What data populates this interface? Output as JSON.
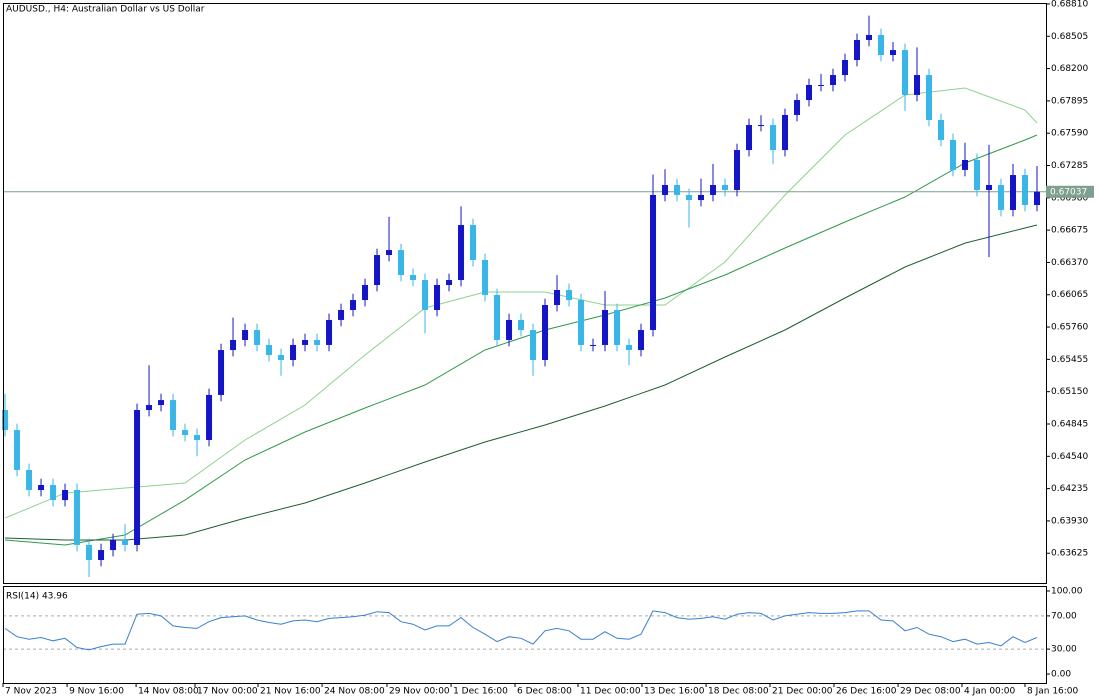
{
  "chart_data": [
    {
      "type": "candlestick",
      "title": "AUDUSD., H4:  Australian Dollar vs US Dollar",
      "xlim": [
        -0.17,
        86.75
      ],
      "xticks": [
        {
          "value": -0.17,
          "label": "7 Nov 2023"
        },
        {
          "value": 5.17,
          "label": "9 Nov 16:00"
        },
        {
          "value": 10.92,
          "label": "14 Nov 08:00"
        },
        {
          "value": 15.83,
          "label": "17 Nov 00:00"
        },
        {
          "value": 21.08,
          "label": "21 Nov 16:00"
        },
        {
          "value": 26.42,
          "label": "24 Nov 08:00"
        },
        {
          "value": 31.83,
          "label": "29 Nov 00:00"
        },
        {
          "value": 37.17,
          "label": "1 Dec 16:00"
        },
        {
          "value": 42.5,
          "label": "6 Dec 08:00"
        },
        {
          "value": 47.75,
          "label": "11 Dec 00:00"
        },
        {
          "value": 53.08,
          "label": "13 Dec 16:00"
        },
        {
          "value": 58.42,
          "label": "18 Dec 08:00"
        },
        {
          "value": 63.75,
          "label": "21 Dec 00:00"
        },
        {
          "value": 69.08,
          "label": "26 Dec 16:00"
        },
        {
          "value": 74.42,
          "label": "29 Dec 08:00"
        },
        {
          "value": 79.75,
          "label": "4 Jan 00:00"
        },
        {
          "value": 85,
          "label": "8 Jan 16:00"
        }
      ],
      "ylim": [
        0.63344,
        0.68819
      ],
      "yticks": [
        {
          "value": 0.6881,
          "label": "0.68810"
        },
        0.68505,
        {
          "value": 0.682,
          "label": "0.68200"
        },
        0.67895,
        {
          "value": 0.6759,
          "label": "0.67590"
        },
        0.67285,
        {
          "value": 0.6698,
          "label": "0.66980"
        },
        0.66675,
        {
          "value": 0.6637,
          "label": "0.66370"
        },
        0.66065,
        {
          "value": 0.6576,
          "label": "0.65760"
        },
        0.65455,
        {
          "value": 0.6515,
          "label": "0.65150"
        },
        0.64845,
        {
          "value": 0.6454,
          "label": "0.64540"
        },
        0.64235,
        {
          "value": 0.6393,
          "label": "0.63930"
        },
        0.63625
      ],
      "open": [
        0.64977,
        0.64788,
        0.64411,
        0.64222,
        0.64269,
        0.64127,
        0.64222,
        0.63703,
        0.63561,
        0.63655,
        0.6375,
        0.63703,
        0.64977,
        0.65024,
        0.65071,
        0.64788,
        0.64741,
        0.64694,
        0.65119,
        0.65543,
        0.65638,
        0.65732,
        0.65591,
        0.65496,
        0.65449,
        0.65591,
        0.65638,
        0.65591,
        0.65827,
        0.65921,
        0.66015,
        0.66157,
        0.6644,
        0.66487,
        0.66251,
        0.66204,
        0.65921,
        0.66157,
        0.66204,
        0.66723,
        0.66393,
        0.66063,
        0.65638,
        0.65827,
        0.65732,
        0.65449,
        0.65968,
        0.6611,
        0.66015,
        0.65591,
        0.65591,
        0.65921,
        0.65591,
        0.65543,
        0.65732,
        0.67007,
        0.67101,
        0.67007,
        0.66959,
        0.67007,
        0.67101,
        0.67054,
        0.67431,
        0.67667,
        0.67667,
        0.67431,
        0.67762,
        0.67903,
        0.68045,
        0.68045,
        0.68139,
        0.68281,
        0.6847,
        0.68517,
        0.68328,
        0.68375,
        0.67951,
        0.68139,
        0.67715,
        0.67526,
        0.67243,
        0.67337,
        0.67054,
        0.67101,
        0.66865,
        0.67195,
        0.66912
      ],
      "high": [
        0.6513,
        0.64848,
        0.64471,
        0.64329,
        0.64329,
        0.64282,
        0.64282,
        0.63763,
        0.63715,
        0.6381,
        0.639,
        0.65037,
        0.654,
        0.65131,
        0.65131,
        0.64848,
        0.64801,
        0.65179,
        0.65603,
        0.6585,
        0.65792,
        0.65792,
        0.65651,
        0.65556,
        0.65651,
        0.65698,
        0.65698,
        0.65887,
        0.65981,
        0.66075,
        0.66217,
        0.665,
        0.668,
        0.66547,
        0.66311,
        0.66264,
        0.66217,
        0.66264,
        0.669,
        0.66783,
        0.66453,
        0.66123,
        0.65887,
        0.65887,
        0.65792,
        0.66028,
        0.6625,
        0.6617,
        0.66075,
        0.65651,
        0.661,
        0.65981,
        0.65651,
        0.65792,
        0.672,
        0.6725,
        0.67161,
        0.67067,
        0.67161,
        0.673,
        0.67161,
        0.67491,
        0.67727,
        0.6776,
        0.67727,
        0.67822,
        0.67963,
        0.68105,
        0.6815,
        0.68199,
        0.68341,
        0.6853,
        0.687,
        0.68577,
        0.6845,
        0.68435,
        0.684,
        0.68199,
        0.67775,
        0.67586,
        0.675,
        0.67397,
        0.6748,
        0.67161,
        0.673,
        0.67255,
        0.6728
      ],
      "low": [
        0.64728,
        0.64351,
        0.64162,
        0.64162,
        0.64067,
        0.64067,
        0.63643,
        0.634,
        0.63501,
        0.63595,
        0.63643,
        0.63643,
        0.64917,
        0.64964,
        0.64728,
        0.64681,
        0.6454,
        0.64634,
        0.65059,
        0.65483,
        0.65578,
        0.65531,
        0.65436,
        0.653,
        0.65389,
        0.65531,
        0.65531,
        0.65531,
        0.65767,
        0.65861,
        0.65955,
        0.66097,
        0.6638,
        0.66191,
        0.66144,
        0.657,
        0.65861,
        0.66097,
        0.66144,
        0.66333,
        0.66003,
        0.65578,
        0.65578,
        0.65672,
        0.653,
        0.65389,
        0.65908,
        0.65955,
        0.65531,
        0.65531,
        0.65531,
        0.65531,
        0.654,
        0.65483,
        0.65672,
        0.66947,
        0.66947,
        0.667,
        0.66899,
        0.66947,
        0.66994,
        0.66994,
        0.67371,
        0.67607,
        0.673,
        0.67371,
        0.67702,
        0.67843,
        0.67985,
        0.67985,
        0.68079,
        0.68221,
        0.6841,
        0.68268,
        0.68268,
        0.678,
        0.67891,
        0.67655,
        0.67466,
        0.67183,
        0.67183,
        0.66994,
        0.6642,
        0.66805,
        0.66805,
        0.66852,
        0.66852
      ],
      "close": [
        0.64788,
        0.64411,
        0.64222,
        0.64269,
        0.64127,
        0.64222,
        0.63703,
        0.63561,
        0.63655,
        0.6375,
        0.63703,
        0.64977,
        0.65024,
        0.65071,
        0.64788,
        0.64741,
        0.64694,
        0.65119,
        0.65543,
        0.65638,
        0.65732,
        0.65591,
        0.65496,
        0.65449,
        0.65591,
        0.65638,
        0.65591,
        0.65827,
        0.65921,
        0.66015,
        0.66157,
        0.6644,
        0.66487,
        0.66251,
        0.66204,
        0.65921,
        0.66157,
        0.66204,
        0.66723,
        0.66393,
        0.66063,
        0.65638,
        0.65827,
        0.65732,
        0.65449,
        0.65968,
        0.6611,
        0.66015,
        0.65591,
        0.65591,
        0.65921,
        0.65591,
        0.65543,
        0.65732,
        0.67007,
        0.67101,
        0.67007,
        0.66959,
        0.67007,
        0.67101,
        0.67054,
        0.67431,
        0.67667,
        0.67667,
        0.67431,
        0.67762,
        0.67903,
        0.68045,
        0.68045,
        0.68139,
        0.68281,
        0.6847,
        0.68517,
        0.68328,
        0.68375,
        0.67951,
        0.68139,
        0.67715,
        0.67526,
        0.67243,
        0.67337,
        0.67054,
        0.67101,
        0.66865,
        0.67195,
        0.66912,
        0.67037
      ],
      "up_color": "#1515c8",
      "down_color": "#38b6e8",
      "current_price": 0.67037,
      "current_price_color": "#7f9f8f",
      "overlays": {
        "x": [
          0,
          5,
          10,
          15,
          20,
          25,
          30,
          35,
          40,
          45,
          50,
          55,
          60,
          65,
          70,
          75,
          80,
          85,
          86
        ],
        "series": [
          {
            "color": "#8fd18f",
            "values": [
              0.63957,
              0.64193,
              0.64241,
              0.64288,
              0.64694,
              0.65024,
              0.65496,
              0.6594,
              0.66091,
              0.66091,
              0.65968,
              0.65968,
              0.66374,
              0.67007,
              0.67573,
              0.67951,
              0.68017,
              0.67809,
              0.67686
            ]
          },
          {
            "color": "#2e9a4a",
            "values": [
              0.6375,
              0.63703,
              0.63797,
              0.64127,
              0.64505,
              0.64769,
              0.64996,
              0.65213,
              0.65543,
              0.65732,
              0.65874,
              0.66034,
              0.66251,
              0.66506,
              0.66752,
              0.66988,
              0.67309,
              0.67526,
              0.67573
            ]
          },
          {
            "color": "#1f5e30",
            "values": [
              0.63769,
              0.6375,
              0.6375,
              0.63797,
              0.63957,
              0.64099,
              0.64288,
              0.64486,
              0.64675,
              0.64835,
              0.65015,
              0.65213,
              0.65477,
              0.65732,
              0.66034,
              0.66327,
              0.66553,
              0.66695,
              0.66723
            ]
          }
        ]
      }
    },
    {
      "type": "line",
      "title": "RSI(14) 43.96",
      "ylim": [
        -10.8,
        106
      ],
      "yticks": [
        {
          "value": 100,
          "label": "100.00"
        },
        {
          "value": 70,
          "label": "70.00"
        },
        {
          "value": 30,
          "label": "30.00"
        },
        {
          "value": 0,
          "label": "0.00"
        }
      ],
      "levels": [
        70,
        30
      ],
      "color": "#3a7fd0",
      "values": [
        55,
        45,
        42,
        44,
        40,
        43,
        32,
        29,
        33,
        36,
        36,
        72,
        73,
        70,
        58,
        56,
        55,
        63,
        68,
        69,
        70,
        65,
        62,
        60,
        64,
        65,
        63,
        67,
        68,
        69,
        71,
        75,
        74,
        63,
        60,
        53,
        58,
        58,
        68,
        56,
        48,
        39,
        45,
        43,
        36,
        52,
        55,
        52,
        42,
        42,
        51,
        43,
        42,
        48,
        76,
        74,
        68,
        66,
        67,
        69,
        66,
        72,
        74,
        73,
        65,
        70,
        72,
        74,
        73,
        73,
        74,
        76,
        76,
        65,
        64,
        52,
        56,
        48,
        45,
        39,
        42,
        36,
        38,
        34,
        45,
        38,
        43.96
      ]
    }
  ]
}
